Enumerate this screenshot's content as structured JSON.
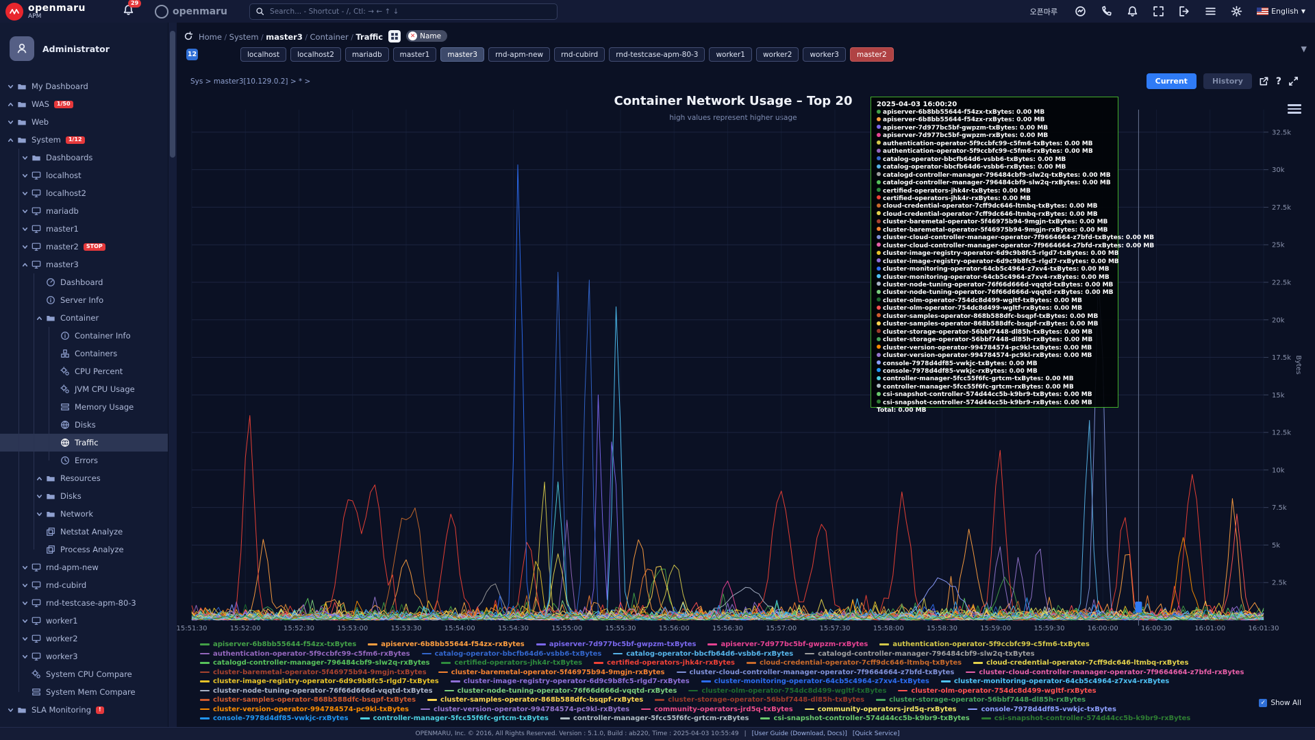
{
  "colors": {
    "accent": "#2f7bf6",
    "alarm": "#e5383b",
    "tooltip_border": "#43b02a",
    "tag_alarm_bg": "#b04344",
    "active_tag_bg": "#3d4a6b"
  },
  "topbar": {
    "logo_text": "openmaru",
    "logo_sub": "APM",
    "alert_count": "29",
    "brand2": "openmaru",
    "search_placeholder": "Search... - Shortcut - /, Ctl: → ← ↑ ↓",
    "account_name": "오픈마루",
    "language": "English"
  },
  "sidebar": {
    "profile_name": "Administrator",
    "items": [
      {
        "label": "My Dashboard",
        "depth": 0,
        "icon": "folder",
        "chev": "d"
      },
      {
        "label": "WAS",
        "depth": 0,
        "icon": "folder",
        "chev": "u",
        "badge": "1/50"
      },
      {
        "label": "Web",
        "depth": 0,
        "icon": "folder",
        "chev": "d"
      },
      {
        "label": "System",
        "depth": 0,
        "icon": "folder",
        "chev": "u",
        "badge": "1/12"
      },
      {
        "label": "Dashboards",
        "depth": 1,
        "icon": "folder",
        "chev": "d"
      },
      {
        "label": "localhost",
        "depth": 1,
        "icon": "monitor",
        "chev": "d"
      },
      {
        "label": "localhost2",
        "depth": 1,
        "icon": "monitor",
        "chev": "d"
      },
      {
        "label": "mariadb",
        "depth": 1,
        "icon": "monitor",
        "chev": "d"
      },
      {
        "label": "master1",
        "depth": 1,
        "icon": "monitor",
        "chev": "d"
      },
      {
        "label": "master2",
        "depth": 1,
        "icon": "monitor",
        "chev": "d",
        "badge": "STOP"
      },
      {
        "label": "master3",
        "depth": 1,
        "icon": "monitor",
        "chev": "u"
      },
      {
        "label": "Dashboard",
        "depth": 2,
        "icon": "gauge"
      },
      {
        "label": "Server Info",
        "depth": 2,
        "icon": "info"
      },
      {
        "label": "Container",
        "depth": 2,
        "icon": "folder",
        "chev": "u"
      },
      {
        "label": "Container Info",
        "depth": 3,
        "icon": "info"
      },
      {
        "label": "Containers",
        "depth": 3,
        "icon": "cubes"
      },
      {
        "label": "CPU Percent",
        "depth": 3,
        "icon": "gears"
      },
      {
        "label": "JVM CPU Usage",
        "depth": 3,
        "icon": "gears"
      },
      {
        "label": "Memory Usage",
        "depth": 3,
        "icon": "memory"
      },
      {
        "label": "Disks",
        "depth": 3,
        "icon": "disk"
      },
      {
        "label": "Traffic",
        "depth": 3,
        "icon": "disk",
        "selected": true
      },
      {
        "label": "Errors",
        "depth": 3,
        "icon": "clock"
      },
      {
        "label": "Resources",
        "depth": 2,
        "icon": "folder",
        "chev": "u"
      },
      {
        "label": "Disks",
        "depth": 2,
        "icon": "folder",
        "chev": "d"
      },
      {
        "label": "Network",
        "depth": 2,
        "icon": "folder",
        "chev": "d"
      },
      {
        "label": "Netstat Analyze",
        "depth": 2,
        "icon": "copy"
      },
      {
        "label": "Process Analyze",
        "depth": 2,
        "icon": "copy"
      },
      {
        "label": "rnd-apm-new",
        "depth": 1,
        "icon": "monitor",
        "chev": "d"
      },
      {
        "label": "rnd-cubird",
        "depth": 1,
        "icon": "monitor",
        "chev": "d"
      },
      {
        "label": "rnd-testcase-apm-80-3",
        "depth": 1,
        "icon": "monitor",
        "chev": "d"
      },
      {
        "label": "worker1",
        "depth": 1,
        "icon": "monitor",
        "chev": "d"
      },
      {
        "label": "worker2",
        "depth": 1,
        "icon": "monitor",
        "chev": "d"
      },
      {
        "label": "worker3",
        "depth": 1,
        "icon": "monitor",
        "chev": "d"
      },
      {
        "label": "System CPU Compare",
        "depth": 1,
        "icon": "gears"
      },
      {
        "label": "System Mem Compare",
        "depth": 1,
        "icon": "memory"
      },
      {
        "label": "SLA Monitoring",
        "depth": 0,
        "icon": "folder",
        "chev": "d",
        "badge": "!"
      }
    ]
  },
  "breadcrumb": {
    "items": [
      "Home",
      "System",
      "master3",
      "Container",
      "Traffic"
    ],
    "filter_label": "Name"
  },
  "tag_row": {
    "count": "12",
    "tags": [
      {
        "label": "localhost"
      },
      {
        "label": "localhost2"
      },
      {
        "label": "mariadb"
      },
      {
        "label": "master1"
      },
      {
        "label": "master3",
        "active": true
      },
      {
        "label": "rnd-apm-new"
      },
      {
        "label": "rnd-cubird"
      },
      {
        "label": "rnd-testcase-apm-80-3"
      },
      {
        "label": "worker1"
      },
      {
        "label": "worker2"
      },
      {
        "label": "worker3"
      },
      {
        "label": "master2",
        "alarm": true
      }
    ]
  },
  "scope_text": "Sys > master3[10.129.0.2] > * >",
  "controls": {
    "current": "Current",
    "history": "History"
  },
  "chart_header": {
    "title": "Container Network Usage – Top 20",
    "subtitle": "high values represent higher usage"
  },
  "tooltip": {
    "timestamp": "2025-04-03 16:00:20",
    "entry_value": "0.00 MB",
    "total_label": "Total",
    "total_value": "0.00 MB"
  },
  "show_all_label": "Show All",
  "footer": {
    "text": "OPENMARU, Inc. © 2016, All Rights Reserved. Version : 5.1.0, Build : ab220, Time : 2025-04-03 10:55:49",
    "sep": "|",
    "links": [
      "[User Guide (Download, Docs)]",
      "[Quick Service]"
    ]
  },
  "chart_data": {
    "type": "line",
    "title": "Container Network Usage – Top 20",
    "subtitle": "high values represent higher usage",
    "ylabel": "Bytes",
    "ylim": [
      0,
      34000
    ],
    "grid": true,
    "legend_position": "bottom",
    "y_ticks": [
      {
        "v": 2500,
        "t": "2.5k"
      },
      {
        "v": 5000,
        "t": "5k"
      },
      {
        "v": 7500,
        "t": "7.5k"
      },
      {
        "v": 10000,
        "t": "10k"
      },
      {
        "v": 12500,
        "t": "12.5k"
      },
      {
        "v": 15000,
        "t": "15k"
      },
      {
        "v": 17500,
        "t": "17.5k"
      },
      {
        "v": 20000,
        "t": "20k"
      },
      {
        "v": 22500,
        "t": "22.5k"
      },
      {
        "v": 25000,
        "t": "25k"
      },
      {
        "v": 27500,
        "t": "27.5k"
      },
      {
        "v": 30000,
        "t": "30k"
      },
      {
        "v": 32500,
        "t": "32.5k"
      }
    ],
    "x_ticks": [
      "15:51:30",
      "15:52:00",
      "15:52:30",
      "15:53:00",
      "15:53:30",
      "15:54:00",
      "15:54:30",
      "15:55:00",
      "15:55:30",
      "15:56:00",
      "15:56:30",
      "15:57:00",
      "15:57:30",
      "15:58:00",
      "15:58:30",
      "15:59:00",
      "15:59:30",
      "16:00:00",
      "16:00:30",
      "16:01:00",
      "16:01:30"
    ],
    "x_range_seconds": 600,
    "crosshair": {
      "t_seconds": 530,
      "label": "2025-04-03 16:00:20"
    },
    "series": [
      {
        "name": "apiserver-6b8bb55644-f54zx-txBytes",
        "color": "#43a047",
        "noise": 1300,
        "peaks": [
          [
            262,
            3200,
            8
          ],
          [
            455,
            2600,
            8
          ]
        ]
      },
      {
        "name": "apiserver-6b8bb55644-f54zx-rxBytes",
        "color": "#ff9f40",
        "noise": 1500,
        "peaks": [
          [
            40,
            4600,
            6
          ],
          [
            120,
            3800,
            8
          ],
          [
            250,
            5200,
            7
          ],
          [
            435,
            5600,
            6
          ],
          [
            523,
            4200,
            5
          ],
          [
            583,
            7400,
            5
          ]
        ]
      },
      {
        "name": "apiserver-7d977bc5bf-gwpzm-txBytes",
        "color": "#7b68ee",
        "noise": 700,
        "peaks": [
          [
            228,
            15600,
            3
          ],
          [
            236,
            14800,
            3
          ]
        ]
      },
      {
        "name": "apiserver-7d977bc5bf-gwpzm-rxBytes",
        "color": "#e84393",
        "noise": 600,
        "peaks": [
          [
            300,
            2400,
            6
          ]
        ]
      },
      {
        "name": "authentication-operator-5f9ccbfc99-c5fm6-txBytes",
        "color": "#d4c84a",
        "noise": 1000,
        "peaks": [
          [
            197,
            9300,
            4
          ],
          [
            270,
            3600,
            8
          ]
        ]
      },
      {
        "name": "authentication-operator-5f9ccbfc99-c5fm6-rxBytes",
        "color": "#9467bd",
        "noise": 650,
        "peaks": [
          [
            210,
            6200,
            4
          ]
        ]
      },
      {
        "name": "catalog-operator-bbcfb64d6-vsbb6-txBytes",
        "color": "#3366cc",
        "noise": 700,
        "peaks": [
          [
            205,
            22600,
            4
          ],
          [
            222,
            23300,
            4
          ]
        ]
      },
      {
        "name": "catalog-operator-bbcfb64d6-vsbb6-rxBytes",
        "color": "#56b4e9",
        "noise": 800,
        "peaks": [
          [
            502,
            13600,
            4
          ]
        ]
      },
      {
        "name": "catalogd-controller-manager-796484cbf9-slw2q-txBytes",
        "color": "#9e9e9e",
        "noise": 550,
        "peaks": [
          [
            168,
            2200,
            10
          ]
        ]
      },
      {
        "name": "catalogd-controller-manager-796484cbf9-slw2q-rxBytes",
        "color": "#57c25b",
        "noise": 950,
        "peaks": []
      },
      {
        "name": "certified-operators-jhk4r-txBytes",
        "color": "#2e8b3d",
        "noise": 700,
        "peaks": []
      },
      {
        "name": "certified-operators-jhk4r-rxBytes",
        "color": "#ef4136",
        "noise": 1400,
        "peaks": [
          [
            32,
            13000,
            6
          ],
          [
            88,
            8000,
            10
          ],
          [
            102,
            8600,
            9
          ],
          [
            145,
            6600,
            8
          ],
          [
            188,
            5200,
            6
          ],
          [
            330,
            8200,
            10
          ],
          [
            352,
            6200,
            8
          ],
          [
            398,
            7400,
            8
          ],
          [
            452,
            10600,
            6
          ],
          [
            522,
            6800,
            6
          ],
          [
            560,
            9600,
            7
          ]
        ]
      },
      {
        "name": "cloud-credential-operator-7cff9dc646-ltmbq-txBytes",
        "color": "#c96a2b",
        "noise": 850,
        "peaks": [
          [
            118,
            6400,
            9
          ],
          [
            126,
            5800,
            6
          ]
        ]
      },
      {
        "name": "cloud-credential-operator-7cff9dc646-ltmbq-rxBytes",
        "color": "#e3d24b",
        "noise": 850,
        "peaks": [
          [
            205,
            4200,
            6
          ]
        ]
      },
      {
        "name": "cluster-baremetal-operator-5f46975b94-9mgjn-txBytes",
        "color": "#a8432f",
        "noise": 550,
        "peaks": []
      },
      {
        "name": "cluster-baremetal-operator-5f46975b94-9mgjn-rxBytes",
        "color": "#f58231",
        "noise": 950,
        "peaks": [
          [
            256,
            3400,
            8
          ]
        ]
      },
      {
        "name": "cluster-cloud-controller-manager-operator-7f9664664-z7bfd-txBytes",
        "color": "#8091d8",
        "noise": 550,
        "peaks": [
          [
            508,
            23500,
            5
          ]
        ]
      },
      {
        "name": "cluster-cloud-controller-manager-operator-7f9664664-z7bfd-rxBytes",
        "color": "#e85fa8",
        "noise": 550,
        "peaks": []
      },
      {
        "name": "cluster-image-registry-operator-6d9c9b8fc5-rlgd7-txBytes",
        "color": "#e6c229",
        "noise": 850,
        "peaks": [
          [
            193,
            4000,
            5
          ]
        ]
      },
      {
        "name": "cluster-image-registry-operator-6d9c9b8fc5-rlgd7-rxBytes",
        "color": "#8e6fd8",
        "noise": 650,
        "peaks": []
      },
      {
        "name": "cluster-monitoring-operator-64cb5c4964-z7xv4-txBytes",
        "color": "#2c6df2",
        "noise": 750,
        "peaks": [
          [
            183,
            31200,
            4
          ]
        ]
      },
      {
        "name": "cluster-monitoring-operator-64cb5c4964-z7xv4-rxBytes",
        "color": "#4fc3f7",
        "noise": 850,
        "peaks": [
          [
            238,
            20900,
            4
          ]
        ]
      },
      {
        "name": "cluster-node-tuning-operator-76f66d666d-vqqtd-txBytes",
        "color": "#aab4c8",
        "noise": 550,
        "peaks": [
          [
            310,
            2000,
            20
          ]
        ]
      },
      {
        "name": "cluster-node-tuning-operator-76f66d666d-vqqtd-rxBytes",
        "color": "#7ccf7e",
        "noise": 950,
        "peaks": []
      },
      {
        "name": "cluster-olm-operator-754dc8d499-wgltf-txBytes",
        "color": "#1e6b2f",
        "noise": 650,
        "peaks": []
      },
      {
        "name": "cluster-olm-operator-754dc8d499-wgltf-rxBytes",
        "color": "#ff5252",
        "noise": 950,
        "peaks": [
          [
            585,
            6600,
            5
          ]
        ]
      },
      {
        "name": "cluster-samples-operator-868b588dfc-bsqpf-txBytes",
        "color": "#cf5b2e",
        "noise": 750,
        "peaks": []
      },
      {
        "name": "cluster-samples-operator-868b588dfc-bsqpf-rxBytes",
        "color": "#ffd54f",
        "noise": 850,
        "peaks": [
          [
            262,
            3600,
            7
          ]
        ]
      },
      {
        "name": "cluster-storage-operator-56bbf7448-dl85h-txBytes",
        "color": "#9c3b2a",
        "noise": 550,
        "peaks": []
      },
      {
        "name": "cluster-storage-operator-56bbf7448-dl85h-rxBytes",
        "color": "#46a35a",
        "noise": 750,
        "peaks": []
      },
      {
        "name": "cluster-version-operator-994784574-pc9kl-txBytes",
        "color": "#fb8c00",
        "noise": 950,
        "peaks": [
          [
            555,
            5400,
            6
          ]
        ]
      },
      {
        "name": "cluster-version-operator-994784574-pc9kl-rxBytes",
        "color": "#9575cd",
        "noise": 750,
        "peaks": [
          [
            452,
            4800,
            5
          ],
          [
            463,
            4300,
            4
          ],
          [
            474,
            5000,
            5
          ]
        ]
      },
      {
        "name": "community-operators-jrd5q-txBytes",
        "color": "#ec4d8b",
        "noise": 550,
        "peaks": [],
        "tooltip": false
      },
      {
        "name": "community-operators-jrd5q-rxBytes",
        "color": "#f5e663",
        "noise": 750,
        "peaks": [],
        "tooltip": false
      },
      {
        "name": "console-7978d4df85-vwkjc-txBytes",
        "color": "#8c9eff",
        "noise": 650,
        "peaks": [
          [
            420,
            2600,
            18
          ]
        ]
      },
      {
        "name": "console-7978d4df85-vwkjc-rxBytes",
        "color": "#2196f3",
        "noise": 750,
        "peaks": []
      },
      {
        "name": "controller-manager-5fcc55f6fc-grtcm-txBytes",
        "color": "#4dd0e1",
        "noise": 650,
        "peaks": [
          [
            205,
            8800,
            5
          ]
        ]
      },
      {
        "name": "controller-manager-5fcc55f6fc-grtcm-rxBytes",
        "color": "#b0bec5",
        "noise": 550,
        "peaks": []
      },
      {
        "name": "csi-snapshot-controller-574d44cc5b-k9br9-txBytes",
        "color": "#69c96d",
        "noise": 650,
        "peaks": []
      },
      {
        "name": "csi-snapshot-controller-574d44cc5b-k9br9-rxBytes",
        "color": "#2e7d32",
        "noise": 650,
        "peaks": []
      }
    ]
  }
}
